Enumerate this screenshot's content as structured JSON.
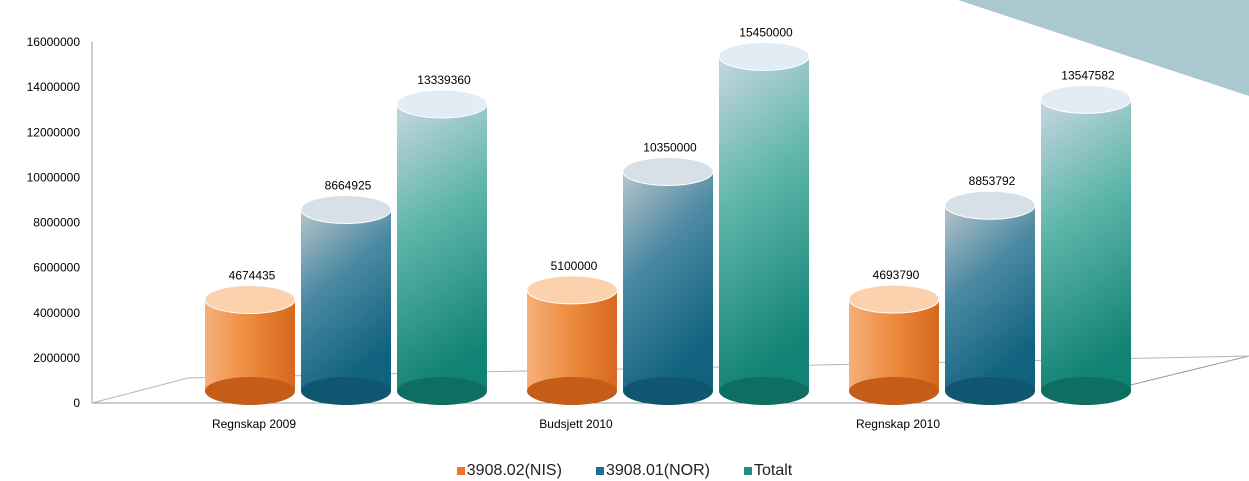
{
  "chart_data": {
    "type": "bar",
    "categories": [
      "Regnskap 2009",
      "Budsjett 2010",
      "Regnskap 2010"
    ],
    "series": [
      {
        "name": "3908.02(NIS)",
        "values": [
          4674435,
          5100000,
          4693790
        ]
      },
      {
        "name": "3908.01(NOR)",
        "values": [
          8664925,
          10350000,
          8853792
        ]
      },
      {
        "name": "Totalt",
        "values": [
          13339360,
          15450000,
          13547582
        ]
      }
    ],
    "yticks": [
      "0",
      "2000000",
      "4000000",
      "6000000",
      "8000000",
      "10000000",
      "12000000",
      "14000000",
      "16000000"
    ],
    "ylim": [
      0,
      16000000
    ],
    "legend_position": "bottom",
    "colors": {
      "3908.02(NIS)": "#e8762b",
      "3908.01(NOR)": "#1f6f8f",
      "Totalt": "#1f8f7f",
      "corner_shape": "#a9c9cf"
    }
  }
}
